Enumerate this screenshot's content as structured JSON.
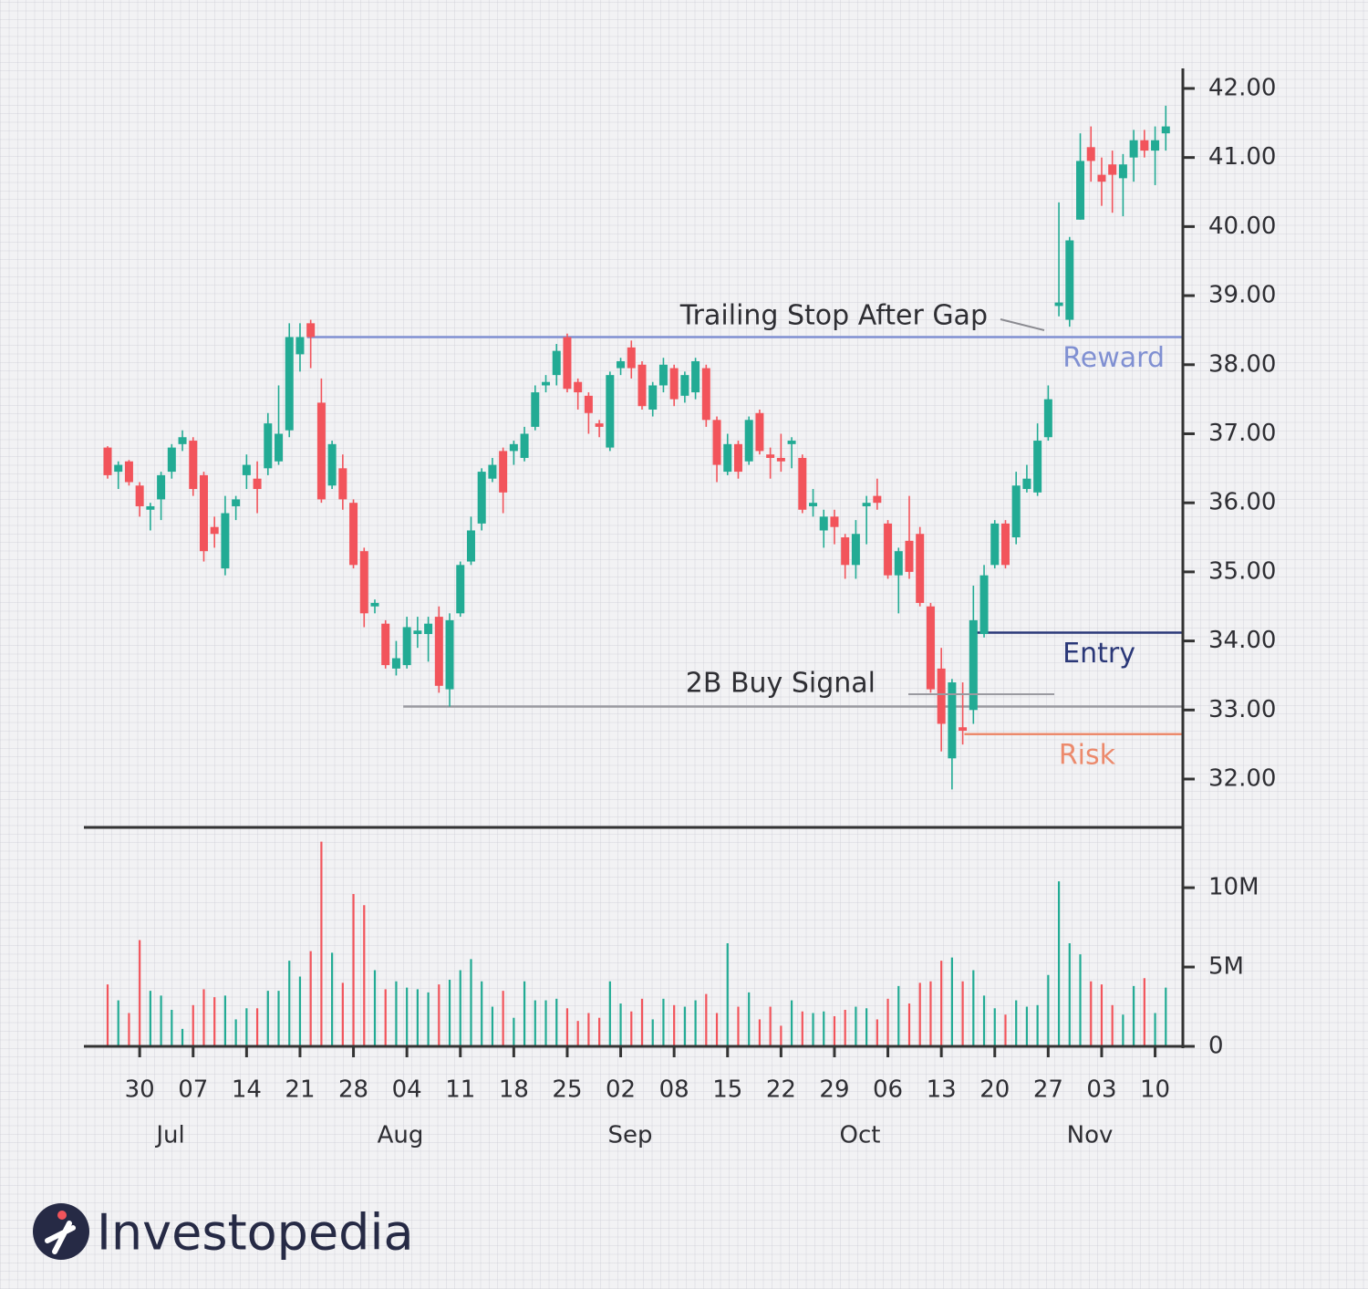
{
  "chart_data": {
    "type": "candlestick",
    "up_color": "#22ab94",
    "down_color": "#f2545b",
    "categories": [
      null,
      null,
      null,
      "30",
      null,
      null,
      null,
      null,
      "07",
      null,
      null,
      null,
      null,
      "14",
      null,
      null,
      null,
      null,
      "21",
      null,
      null,
      null,
      null,
      "28",
      null,
      null,
      null,
      null,
      "04",
      null,
      null,
      null,
      null,
      "11",
      null,
      null,
      null,
      null,
      "18",
      null,
      null,
      null,
      null,
      "25",
      null,
      null,
      null,
      null,
      "02",
      null,
      null,
      null,
      null,
      "08",
      null,
      null,
      null,
      null,
      "15",
      null,
      null,
      null,
      null,
      "22",
      null,
      null,
      null,
      null,
      "29",
      null,
      null,
      null,
      null,
      "06",
      null,
      null,
      null,
      null,
      "13",
      null,
      null,
      null,
      null,
      "20",
      null,
      null,
      null,
      null,
      "27",
      null,
      null,
      null,
      null,
      "03",
      null,
      null,
      null,
      null,
      "10",
      null
    ],
    "months": [
      "Jul",
      "Aug",
      "Sep",
      "Oct",
      "Nov"
    ],
    "open": [
      36.8,
      36.45,
      36.6,
      36.25,
      35.9,
      36.05,
      36.45,
      36.85,
      36.9,
      36.4,
      35.65,
      35.05,
      35.95,
      36.4,
      36.35,
      36.5,
      36.6,
      37.05,
      38.15,
      38.6,
      37.45,
      36.25,
      36.5,
      36.0,
      35.3,
      34.5,
      34.25,
      33.6,
      33.65,
      34.1,
      34.1,
      34.35,
      33.3,
      34.4,
      35.15,
      35.7,
      36.35,
      36.75,
      36.75,
      36.65,
      37.1,
      37.7,
      37.85,
      38.4,
      37.75,
      37.55,
      37.15,
      36.8,
      37.95,
      38.25,
      38.0,
      37.35,
      37.7,
      37.95,
      37.55,
      37.6,
      37.95,
      37.2,
      36.45,
      36.85,
      36.6,
      37.3,
      36.7,
      36.65,
      36.85,
      36.65,
      35.95,
      35.6,
      35.8,
      35.5,
      35.1,
      35.95,
      36.1,
      35.7,
      34.95,
      35.45,
      35.55,
      34.5,
      33.6,
      32.3,
      32.75,
      33.0,
      34.1,
      35.1,
      35.7,
      35.5,
      36.2,
      36.15,
      36.95,
      38.85,
      38.65,
      40.1,
      41.15,
      40.75,
      40.9,
      40.7,
      41.0,
      41.25,
      41.1,
      41.35
    ],
    "high": [
      36.82,
      36.6,
      36.62,
      36.3,
      36.0,
      36.45,
      36.85,
      37.05,
      36.95,
      36.45,
      35.8,
      36.1,
      36.1,
      36.7,
      36.6,
      37.3,
      37.7,
      38.6,
      38.6,
      38.65,
      37.8,
      36.9,
      36.7,
      36.05,
      35.35,
      34.6,
      34.3,
      34.0,
      34.35,
      34.35,
      34.35,
      34.5,
      34.4,
      35.15,
      35.8,
      36.5,
      36.65,
      36.8,
      36.9,
      37.1,
      37.7,
      37.85,
      38.3,
      38.45,
      37.8,
      37.6,
      37.2,
      37.9,
      38.1,
      38.35,
      38.05,
      37.75,
      38.1,
      38.0,
      37.9,
      38.1,
      38.0,
      37.25,
      37.0,
      36.9,
      37.25,
      37.35,
      36.8,
      37.0,
      36.95,
      36.7,
      36.2,
      35.9,
      35.9,
      35.55,
      35.75,
      36.1,
      36.35,
      35.75,
      35.35,
      36.1,
      35.65,
      34.55,
      33.9,
      33.45,
      33.4,
      34.8,
      35.1,
      35.75,
      35.75,
      36.45,
      36.55,
      37.15,
      37.7,
      40.35,
      39.85,
      41.35,
      41.45,
      41.0,
      41.1,
      41.05,
      41.4,
      41.4,
      41.45,
      41.75
    ],
    "low": [
      36.35,
      36.2,
      36.25,
      35.8,
      35.6,
      35.75,
      36.35,
      36.75,
      36.1,
      35.15,
      35.35,
      34.95,
      35.75,
      36.2,
      35.85,
      36.4,
      36.55,
      36.95,
      37.9,
      37.95,
      36.0,
      36.2,
      35.9,
      35.05,
      34.2,
      34.4,
      33.6,
      33.5,
      33.6,
      33.9,
      33.7,
      33.25,
      33.05,
      34.35,
      35.1,
      35.6,
      36.3,
      35.85,
      36.55,
      36.6,
      37.05,
      37.6,
      37.7,
      37.6,
      37.35,
      37.0,
      36.95,
      36.75,
      37.85,
      37.8,
      37.35,
      37.25,
      37.6,
      37.4,
      37.45,
      37.5,
      37.1,
      36.3,
      36.4,
      36.35,
      36.55,
      36.7,
      36.35,
      36.45,
      36.5,
      35.85,
      35.8,
      35.35,
      35.4,
      34.9,
      34.9,
      35.4,
      35.9,
      34.9,
      34.4,
      34.9,
      34.5,
      33.25,
      32.4,
      31.85,
      32.5,
      32.8,
      34.05,
      35.05,
      35.05,
      35.4,
      36.15,
      36.1,
      36.9,
      38.7,
      38.55,
      40.1,
      40.65,
      40.3,
      40.2,
      40.15,
      40.65,
      41.0,
      40.6,
      41.1
    ],
    "close": [
      36.4,
      36.55,
      36.3,
      35.95,
      35.95,
      36.4,
      36.8,
      36.95,
      36.2,
      35.3,
      35.55,
      35.85,
      36.05,
      36.55,
      36.2,
      37.15,
      37.0,
      38.4,
      38.4,
      38.4,
      36.05,
      36.85,
      36.05,
      35.1,
      34.4,
      34.55,
      33.65,
      33.75,
      34.2,
      34.15,
      34.25,
      33.35,
      34.3,
      35.1,
      35.6,
      36.45,
      36.55,
      36.15,
      36.85,
      37.0,
      37.6,
      37.75,
      38.2,
      37.65,
      37.6,
      37.3,
      37.1,
      37.85,
      38.05,
      37.95,
      37.4,
      37.7,
      38.0,
      37.5,
      37.85,
      38.05,
      37.2,
      36.55,
      36.85,
      36.45,
      37.2,
      36.75,
      36.65,
      36.6,
      36.9,
      35.9,
      36.0,
      35.8,
      35.65,
      35.1,
      35.55,
      36.0,
      36.0,
      34.95,
      35.3,
      35.0,
      34.55,
      33.3,
      32.8,
      33.4,
      32.7,
      34.3,
      34.95,
      35.7,
      35.1,
      36.25,
      36.35,
      36.9,
      37.5,
      38.9,
      39.8,
      40.95,
      40.95,
      40.65,
      40.75,
      40.9,
      41.25,
      41.1,
      41.25,
      41.45
    ],
    "volume": [
      3900000,
      2900000,
      2100000,
      6700000,
      3500000,
      3200000,
      2300000,
      1100000,
      2600000,
      3600000,
      3100000,
      3200000,
      1700000,
      2400000,
      2400000,
      3500000,
      3500000,
      5400000,
      4400000,
      6000000,
      12900000,
      5900000,
      4000000,
      9600000,
      8900000,
      4800000,
      3600000,
      4100000,
      3700000,
      3600000,
      3400000,
      3900000,
      4200000,
      4800000,
      5500000,
      4100000,
      2500000,
      3500000,
      1800000,
      4100000,
      2900000,
      2900000,
      3000000,
      2400000,
      1600000,
      2100000,
      1800000,
      4100000,
      2700000,
      2200000,
      3000000,
      1700000,
      3000000,
      2600000,
      2500000,
      2900000,
      3300000,
      2100000,
      6500000,
      2500000,
      3400000,
      1700000,
      2500000,
      1300000,
      2900000,
      2200000,
      2100000,
      2200000,
      1900000,
      2300000,
      2500000,
      2400000,
      1700000,
      3000000,
      3800000,
      2700000,
      4000000,
      4100000,
      5400000,
      5600000,
      4100000,
      4800000,
      3200000,
      2400000,
      2000000,
      2900000,
      2500000,
      2600000,
      4500000,
      10400000,
      6500000,
      5800000,
      4100000,
      3900000,
      2600000,
      2000000,
      3800000,
      4300000,
      2100000,
      3700000
    ],
    "ylim": [
      31.3,
      42.29
    ],
    "yticks": [
      {
        "value": 32,
        "label": "32.00"
      },
      {
        "value": 33,
        "label": "33.00"
      },
      {
        "value": 34,
        "label": "34.00"
      },
      {
        "value": 35,
        "label": "35.00"
      },
      {
        "value": 36,
        "label": "36.00"
      },
      {
        "value": 37,
        "label": "37.00"
      },
      {
        "value": 38,
        "label": "38.00"
      },
      {
        "value": 39,
        "label": "39.00"
      },
      {
        "value": 40,
        "label": "40.00"
      },
      {
        "value": 41,
        "label": "41.00"
      },
      {
        "value": 42,
        "label": "42.00"
      }
    ],
    "volume_ylim": [
      0,
      13800000
    ],
    "volume_yticks": [
      {
        "value": 0,
        "label": "0"
      },
      {
        "value": 5000000,
        "label": "5M"
      },
      {
        "value": 10000000,
        "label": "10M"
      }
    ],
    "levels": [
      {
        "label": "Reward",
        "value": 38.4,
        "color": "#8090d2"
      },
      {
        "label": "Entry",
        "value": 34.12,
        "color": "#2b3878"
      },
      {
        "value": 33.05,
        "color": "#9a9aa0"
      },
      {
        "label": "Risk",
        "value": 32.65,
        "color": "#ec8a6c"
      }
    ],
    "annotations": [
      "Trailing Stop After Gap",
      "2B Buy Signal"
    ]
  },
  "brand": "Investopedia"
}
